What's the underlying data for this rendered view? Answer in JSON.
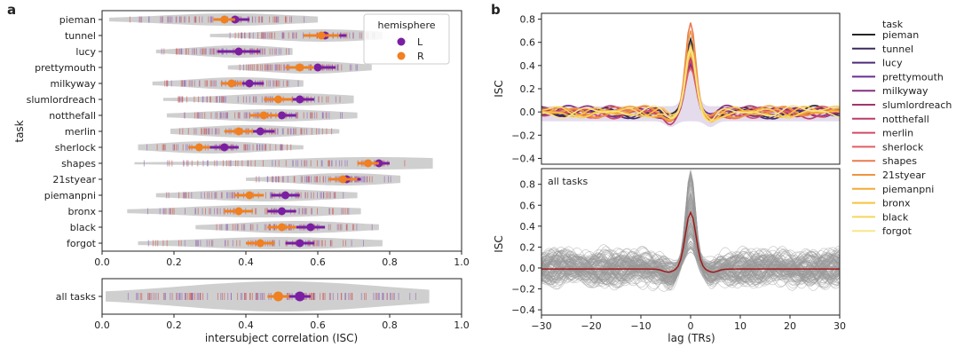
{
  "panel_labels": {
    "a": "a",
    "b": "b"
  },
  "colors": {
    "L": "#7a1fa2",
    "R": "#f08020",
    "violin": "#cfcfcf",
    "trace_gray": "#9a9a9a",
    "mean_red": "#a11818",
    "dot_red": "#c8504a"
  },
  "chart_data": [
    {
      "type": "violin",
      "panel": "a",
      "ylabel": "task",
      "xlabel": "",
      "xlim": [
        0.0,
        1.0
      ],
      "xticks": [
        "0.0",
        "0.2",
        "0.4",
        "0.6",
        "0.8",
        "1.0"
      ],
      "legend": {
        "title": "hemisphere",
        "entries": [
          "L",
          "R"
        ],
        "placement": "top-right"
      },
      "categories": [
        "pieman",
        "tunnel",
        "lucy",
        "prettymouth",
        "milkyway",
        "slumlordreach",
        "notthefall",
        "merlin",
        "sherlock",
        "shapes",
        "21styear",
        "piemanpni",
        "bronx",
        "black",
        "forgot"
      ],
      "range": [
        [
          0.02,
          0.6
        ],
        [
          0.3,
          0.78
        ],
        [
          0.15,
          0.53
        ],
        [
          0.35,
          0.75
        ],
        [
          0.14,
          0.56
        ],
        [
          0.17,
          0.7
        ],
        [
          0.18,
          0.71
        ],
        [
          0.19,
          0.66
        ],
        [
          0.1,
          0.56
        ],
        [
          0.09,
          0.92
        ],
        [
          0.4,
          0.83
        ],
        [
          0.15,
          0.71
        ],
        [
          0.07,
          0.72
        ],
        [
          0.26,
          0.77
        ],
        [
          0.1,
          0.78
        ]
      ],
      "series": [
        {
          "name": "L",
          "values": [
            0.37,
            0.62,
            0.38,
            0.6,
            0.41,
            0.55,
            0.5,
            0.44,
            0.34,
            0.77,
            0.68,
            0.51,
            0.5,
            0.58,
            0.55
          ],
          "ci": [
            [
              0.33,
              0.41
            ],
            [
              0.56,
              0.68
            ],
            [
              0.32,
              0.44
            ],
            [
              0.55,
              0.65
            ],
            [
              0.37,
              0.45
            ],
            [
              0.51,
              0.59
            ],
            [
              0.47,
              0.54
            ],
            [
              0.4,
              0.48
            ],
            [
              0.3,
              0.38
            ],
            [
              0.74,
              0.8
            ],
            [
              0.64,
              0.72
            ],
            [
              0.47,
              0.55
            ],
            [
              0.46,
              0.54
            ],
            [
              0.54,
              0.62
            ],
            [
              0.51,
              0.59
            ]
          ]
        },
        {
          "name": "R",
          "values": [
            0.34,
            0.61,
            null,
            0.55,
            0.36,
            0.49,
            0.45,
            0.38,
            0.27,
            0.74,
            0.67,
            0.41,
            0.38,
            0.5,
            0.44
          ],
          "ci": [
            [
              0.31,
              0.37
            ],
            [
              0.56,
              0.66
            ],
            null,
            [
              0.51,
              0.59
            ],
            [
              0.33,
              0.39
            ],
            [
              0.45,
              0.53
            ],
            [
              0.41,
              0.49
            ],
            [
              0.34,
              0.42
            ],
            [
              0.24,
              0.3
            ],
            [
              0.71,
              0.77
            ],
            [
              0.63,
              0.71
            ],
            [
              0.37,
              0.45
            ],
            [
              0.34,
              0.42
            ],
            [
              0.46,
              0.54
            ],
            [
              0.4,
              0.48
            ]
          ]
        }
      ]
    },
    {
      "type": "violin",
      "panel": "a-bottom",
      "xlabel": "intersubject correlation (ISC)",
      "xlim": [
        0.0,
        1.0
      ],
      "xticks": [
        "0.0",
        "0.2",
        "0.4",
        "0.6",
        "0.8",
        "1.0"
      ],
      "categories": [
        "all tasks"
      ],
      "range": [
        [
          0.01,
          0.91
        ]
      ],
      "series": [
        {
          "name": "L",
          "values": [
            0.55
          ],
          "ci": [
            [
              0.52,
              0.58
            ]
          ]
        },
        {
          "name": "R",
          "values": [
            0.49
          ],
          "ci": [
            [
              0.46,
              0.52
            ]
          ]
        }
      ]
    },
    {
      "type": "line",
      "panel": "b-top",
      "ylabel": "ISC",
      "xlim": [
        -30,
        30
      ],
      "ylim": [
        -0.45,
        0.85
      ],
      "yticks": [
        "−0.4",
        "−0.2",
        "0.0",
        "0.2",
        "0.4",
        "0.6",
        "0.8"
      ],
      "legend": {
        "title": "task",
        "placement": "right",
        "entries": [
          "pieman",
          "tunnel",
          "lucy",
          "prettymouth",
          "milkyway",
          "slumlordreach",
          "notthefall",
          "merlin",
          "sherlock",
          "shapes",
          "21styear",
          "piemanpni",
          "bronx",
          "black",
          "forgot"
        ]
      },
      "series_colors": [
        "#262626",
        "#3c2a5e",
        "#4d2a78",
        "#6a2c8f",
        "#84307f",
        "#a0356e",
        "#bb3c6a",
        "#d14a66",
        "#e05e60",
        "#ea7a50",
        "#f09440",
        "#f4aa34",
        "#f6c23c",
        "#f7d65a",
        "#f8e68a"
      ],
      "peaks": [
        0.63,
        0.55,
        0.43,
        0.58,
        0.4,
        0.5,
        0.46,
        0.44,
        0.38,
        0.77,
        0.7,
        0.52,
        0.5,
        0.57,
        0.54
      ]
    },
    {
      "type": "line",
      "panel": "b-bottom",
      "title": "all tasks",
      "ylabel": "ISC",
      "xlabel": "lag (TRs)",
      "xlim": [
        -30,
        30
      ],
      "ylim": [
        -0.45,
        0.95
      ],
      "xticks": [
        "−30",
        "−20",
        "−10",
        "0",
        "10",
        "20",
        "30"
      ],
      "yticks": [
        "−0.4",
        "−0.2",
        "0.0",
        "0.2",
        "0.4",
        "0.6",
        "0.8"
      ],
      "mean_peak": 0.54
    }
  ]
}
